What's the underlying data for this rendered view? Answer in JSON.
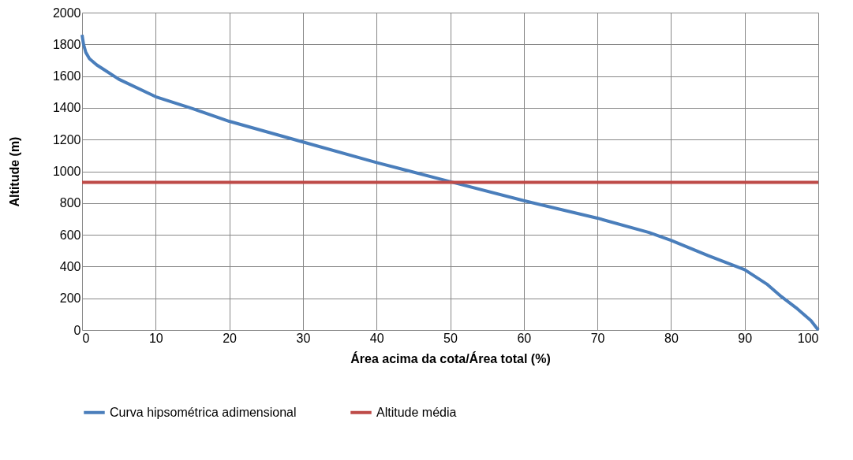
{
  "chart_data": {
    "type": "line",
    "xlabel": "Área acima da cota/Área total (%)",
    "ylabel": "Altitude (m)",
    "xlim": [
      0,
      100
    ],
    "xticks": [
      0,
      10,
      20,
      30,
      40,
      50,
      60,
      70,
      80,
      90,
      100
    ],
    "ylim": [
      0,
      2000
    ],
    "yticks": [
      0,
      200,
      400,
      600,
      800,
      1000,
      1200,
      1400,
      1600,
      1800,
      2000
    ],
    "grid": true,
    "legend": "bottom",
    "marker": "none",
    "line_style": "solid",
    "series": [
      {
        "name": "Curva hipsométrica adimensional",
        "color": "#4a7ebb",
        "x": [
          0,
          0.2,
          0.5,
          1,
          2,
          3,
          5,
          10,
          15,
          20,
          30,
          40,
          50,
          60,
          70,
          77,
          80,
          85,
          90,
          93,
          95,
          97,
          99,
          100
        ],
        "values": [
          1860,
          1800,
          1750,
          1710,
          1670,
          1640,
          1580,
          1470,
          1395,
          1315,
          1185,
          1055,
          935,
          815,
          705,
          615,
          565,
          470,
          380,
          290,
          210,
          140,
          60,
          0
        ]
      },
      {
        "name": "Altitude média",
        "color": "#be4b48",
        "x": [
          0,
          100
        ],
        "values": [
          930,
          930
        ]
      }
    ]
  }
}
